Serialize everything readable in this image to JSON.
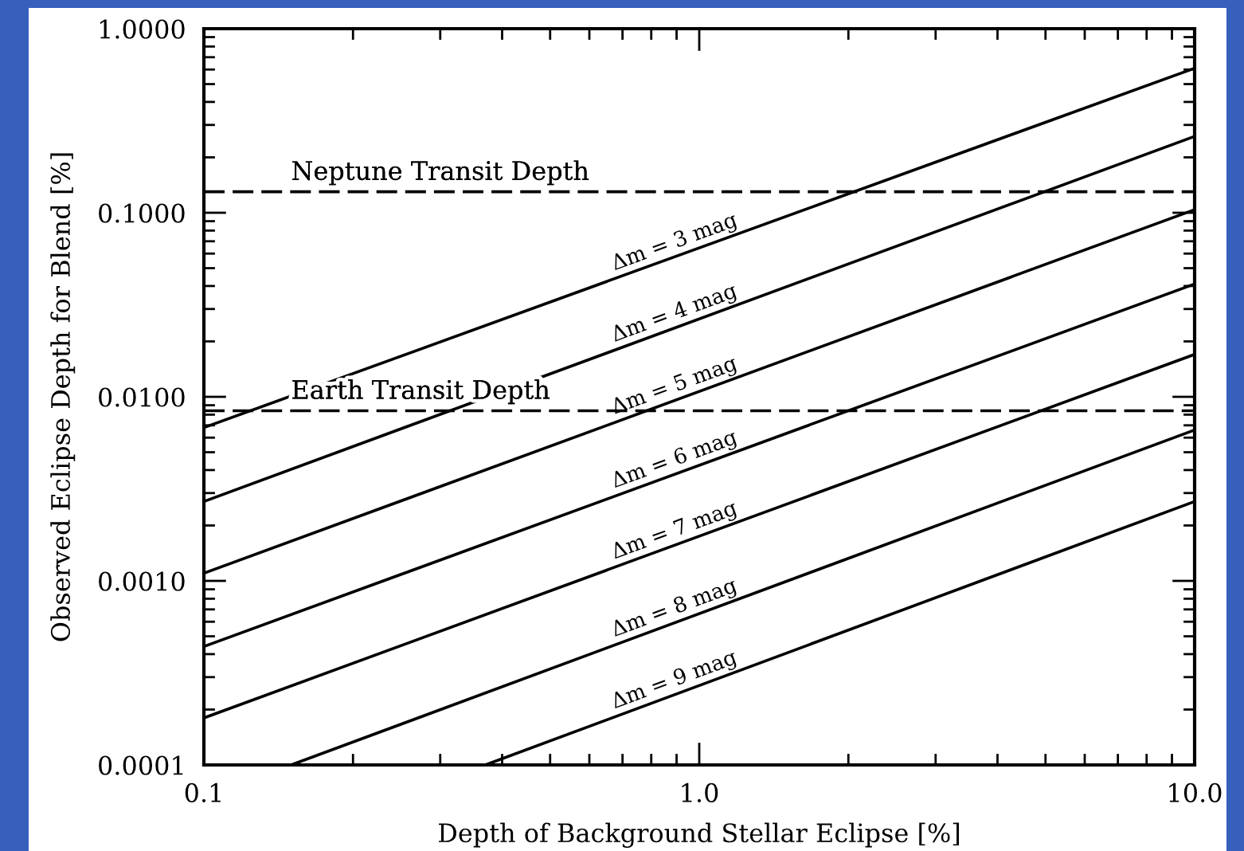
{
  "chart_data": {
    "type": "line",
    "xlabel": "Depth of Background Stellar Eclipse [%]",
    "ylabel": "Observed Eclipse Depth for Blend [%]",
    "log": "xy",
    "line_style": "solid",
    "xlim": [
      0.1,
      10
    ],
    "ylim": [
      0.0001,
      1
    ],
    "xticks": [
      0.1,
      {
        "value": 1,
        "label": "1.0"
      },
      {
        "value": 10,
        "label": "10.0"
      }
    ],
    "yticks": [
      {
        "value": 0.0001,
        "label": "0.0001"
      },
      {
        "value": 0.001,
        "label": "0.0010"
      },
      {
        "value": 0.01,
        "label": "0.0100"
      },
      {
        "value": 0.1,
        "label": "0.1000"
      },
      {
        "value": 1,
        "label": "1.0000"
      }
    ],
    "series": [
      {
        "name": "Δm = 3 mag",
        "color": "#000000",
        "x": [
          0.1,
          10
        ],
        "values": [
          0.0068,
          0.61
        ]
      },
      {
        "name": "Δm = 4 mag",
        "color": "#000000",
        "x": [
          0.1,
          10
        ],
        "values": [
          0.0027,
          0.26
        ]
      },
      {
        "name": "Δm = 5 mag",
        "color": "#000000",
        "x": [
          0.1,
          10
        ],
        "values": [
          0.0011,
          0.104
        ]
      },
      {
        "name": "Δm = 6 mag",
        "color": "#000000",
        "x": [
          0.1,
          10
        ],
        "values": [
          0.00044,
          0.041
        ]
      },
      {
        "name": "Δm = 7 mag",
        "color": "#000000",
        "x": [
          0.1,
          10
        ],
        "values": [
          0.00018,
          0.017
        ]
      },
      {
        "name": "Δm = 8 mag",
        "color": "#000000",
        "x": [
          0.15,
          10
        ],
        "values": [
          0.0001,
          0.0066
        ]
      },
      {
        "name": "Δm = 9 mag",
        "color": "#000000",
        "x": [
          0.37,
          10
        ],
        "values": [
          0.0001,
          0.0027
        ]
      }
    ],
    "ref_lines": [
      {
        "axis": "y",
        "value": 0.13,
        "label": "Neptune Transit Depth",
        "color": "#000000",
        "line_style": "dashed"
      },
      {
        "axis": "y",
        "value": 0.0084,
        "label": "Earth Transit Depth",
        "color": "#000000",
        "line_style": "dashed"
      }
    ]
  }
}
